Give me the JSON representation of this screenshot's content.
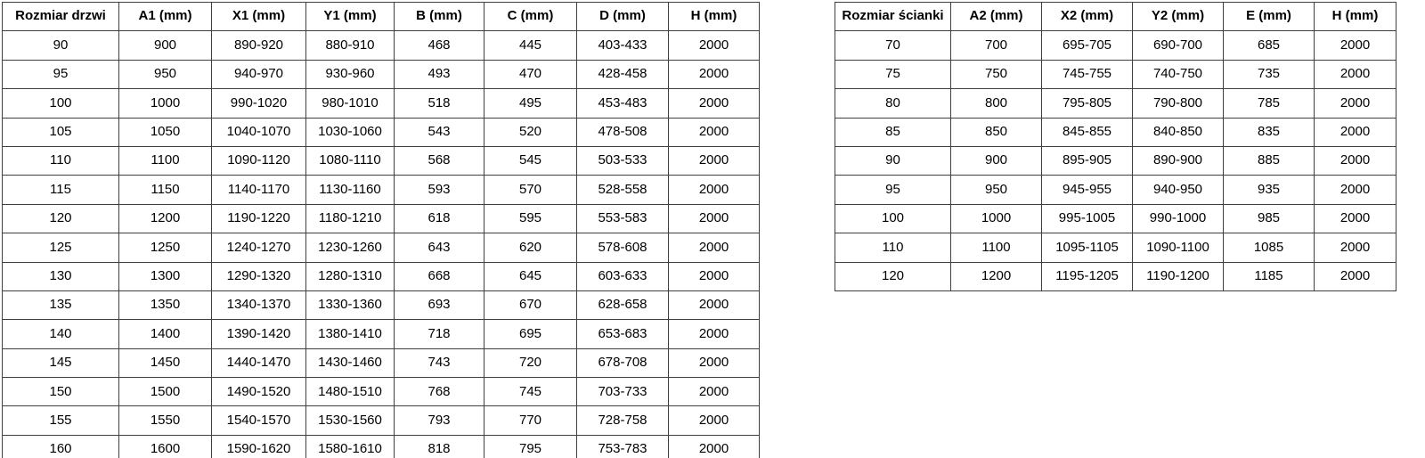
{
  "page": {
    "background_color": "#ffffff",
    "text_color": "#000000",
    "border_color": "#3f3f3f"
  },
  "door_table": {
    "headers": [
      "Rozmiar drzwi",
      "A1 (mm)",
      "X1 (mm)",
      "Y1 (mm)",
      "B (mm)",
      "C (mm)",
      "D (mm)",
      "H (mm)"
    ],
    "rows": [
      [
        "90",
        "900",
        "890-920",
        "880-910",
        "468",
        "445",
        "403-433",
        "2000"
      ],
      [
        "95",
        "950",
        "940-970",
        "930-960",
        "493",
        "470",
        "428-458",
        "2000"
      ],
      [
        "100",
        "1000",
        "990-1020",
        "980-1010",
        "518",
        "495",
        "453-483",
        "2000"
      ],
      [
        "105",
        "1050",
        "1040-1070",
        "1030-1060",
        "543",
        "520",
        "478-508",
        "2000"
      ],
      [
        "110",
        "1100",
        "1090-1120",
        "1080-1110",
        "568",
        "545",
        "503-533",
        "2000"
      ],
      [
        "115",
        "1150",
        "1140-1170",
        "1130-1160",
        "593",
        "570",
        "528-558",
        "2000"
      ],
      [
        "120",
        "1200",
        "1190-1220",
        "1180-1210",
        "618",
        "595",
        "553-583",
        "2000"
      ],
      [
        "125",
        "1250",
        "1240-1270",
        "1230-1260",
        "643",
        "620",
        "578-608",
        "2000"
      ],
      [
        "130",
        "1300",
        "1290-1320",
        "1280-1310",
        "668",
        "645",
        "603-633",
        "2000"
      ],
      [
        "135",
        "1350",
        "1340-1370",
        "1330-1360",
        "693",
        "670",
        "628-658",
        "2000"
      ],
      [
        "140",
        "1400",
        "1390-1420",
        "1380-1410",
        "718",
        "695",
        "653-683",
        "2000"
      ],
      [
        "145",
        "1450",
        "1440-1470",
        "1430-1460",
        "743",
        "720",
        "678-708",
        "2000"
      ],
      [
        "150",
        "1500",
        "1490-1520",
        "1480-1510",
        "768",
        "745",
        "703-733",
        "2000"
      ],
      [
        "155",
        "1550",
        "1540-1570",
        "1530-1560",
        "793",
        "770",
        "728-758",
        "2000"
      ],
      [
        "160",
        "1600",
        "1590-1620",
        "1580-1610",
        "818",
        "795",
        "753-783",
        "2000"
      ]
    ]
  },
  "wall_table": {
    "headers": [
      "Rozmiar ścianki",
      "A2 (mm)",
      "X2 (mm)",
      "Y2 (mm)",
      "E (mm)",
      "H (mm)"
    ],
    "rows": [
      [
        "70",
        "700",
        "695-705",
        "690-700",
        "685",
        "2000"
      ],
      [
        "75",
        "750",
        "745-755",
        "740-750",
        "735",
        "2000"
      ],
      [
        "80",
        "800",
        "795-805",
        "790-800",
        "785",
        "2000"
      ],
      [
        "85",
        "850",
        "845-855",
        "840-850",
        "835",
        "2000"
      ],
      [
        "90",
        "900",
        "895-905",
        "890-900",
        "885",
        "2000"
      ],
      [
        "95",
        "950",
        "945-955",
        "940-950",
        "935",
        "2000"
      ],
      [
        "100",
        "1000",
        "995-1005",
        "990-1000",
        "985",
        "2000"
      ],
      [
        "110",
        "1100",
        "1095-1105",
        "1090-1100",
        "1085",
        "2000"
      ],
      [
        "120",
        "1200",
        "1195-1205",
        "1190-1200",
        "1185",
        "2000"
      ]
    ]
  }
}
